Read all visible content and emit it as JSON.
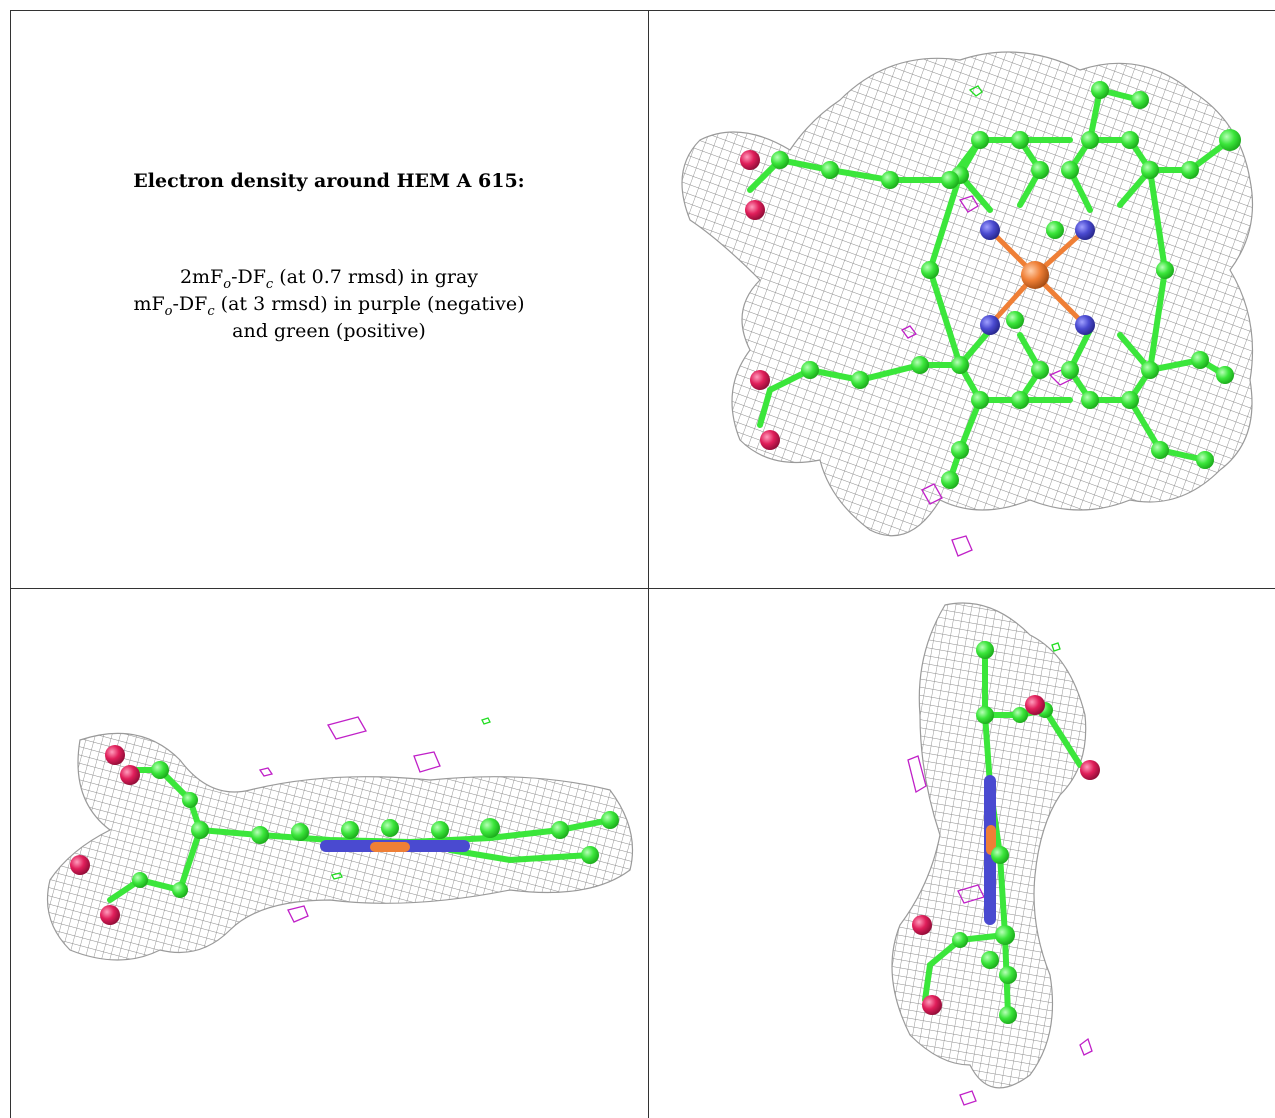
{
  "caption": {
    "title": "Electron density around HEM A 615:",
    "line1": {
      "pre": "2mF",
      "sub1": "o",
      "mid": "-DF",
      "sub2": "c",
      "post": " (at 0.7 rmsd) in gray"
    },
    "line2": {
      "pre": "mF",
      "sub1": "o",
      "mid": "-DF",
      "sub2": "c",
      "post": " (at 3 rmsd) in purple (negative)"
    },
    "line3": "and green (positive)"
  },
  "colors": {
    "mesh_gray": "#8a8a8a",
    "difference_negative": "#c020c8",
    "difference_positive": "#22dd22",
    "carbon": "#3be63b",
    "nitrogen": "#4a4ad0",
    "oxygen": "#e01e5a",
    "iron": "#ef7f36"
  },
  "panels": [
    {
      "view": "face-on"
    },
    {
      "view": "edge-on horizontal"
    },
    {
      "view": "edge-on vertical"
    }
  ]
}
